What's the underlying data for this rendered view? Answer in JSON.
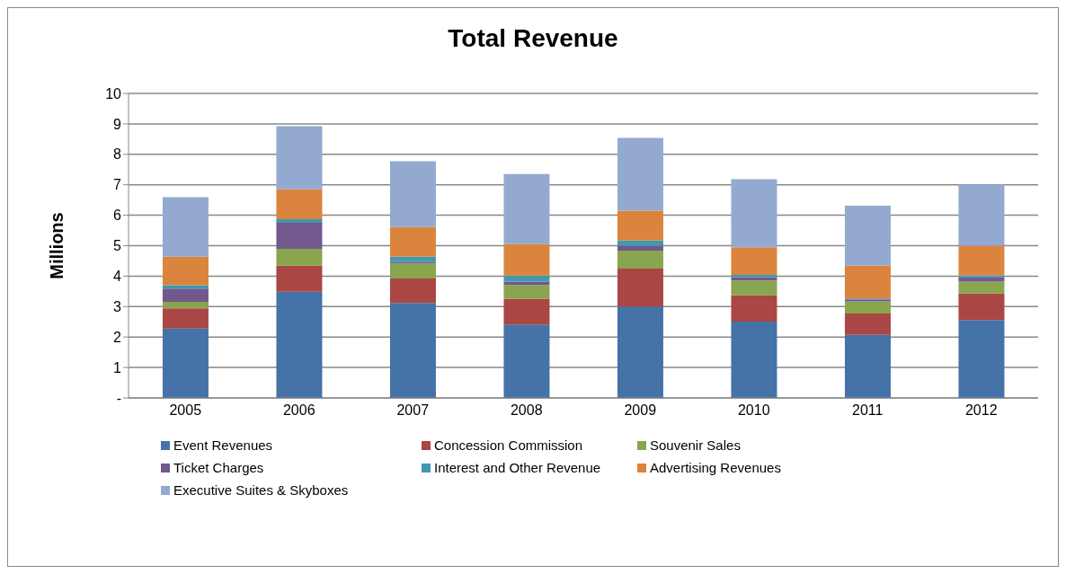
{
  "chart_data": {
    "type": "bar",
    "title": "Total Revenue",
    "ylabel": "Millions",
    "stacked": true,
    "categories": [
      "2005",
      "2006",
      "2007",
      "2008",
      "2009",
      "2010",
      "2011",
      "2012"
    ],
    "series": [
      {
        "name": "Event Revenues",
        "color": "#4572a7",
        "values": [
          2.28,
          3.49,
          3.12,
          2.41,
          3.0,
          2.51,
          2.07,
          2.56
        ]
      },
      {
        "name": "Concession Commission",
        "color": "#aa4643",
        "values": [
          0.66,
          0.85,
          0.8,
          0.85,
          1.25,
          0.86,
          0.7,
          0.87
        ]
      },
      {
        "name": "Souvenir Sales",
        "color": "#89a54e",
        "values": [
          0.22,
          0.56,
          0.5,
          0.45,
          0.59,
          0.49,
          0.4,
          0.39
        ]
      },
      {
        "name": "Ticket Charges",
        "color": "#71588f",
        "values": [
          0.43,
          0.85,
          0.05,
          0.11,
          0.16,
          0.1,
          0.07,
          0.14
        ]
      },
      {
        "name": "Interest and Other Revenue",
        "color": "#4198af",
        "values": [
          0.11,
          0.12,
          0.17,
          0.2,
          0.17,
          0.08,
          0.03,
          0.07
        ]
      },
      {
        "name": "Advertising Revenues",
        "color": "#db843d",
        "values": [
          0.94,
          0.98,
          0.97,
          1.03,
          0.98,
          0.91,
          1.07,
          0.97
        ]
      },
      {
        "name": "Executive Suites & Skyboxes",
        "color": "#93a9cf",
        "values": [
          1.95,
          2.07,
          2.16,
          2.3,
          2.39,
          2.23,
          1.97,
          2.01
        ]
      }
    ],
    "ylim": [
      0,
      10
    ],
    "yticks": [
      {
        "value": 0,
        "label": "-"
      },
      1,
      2,
      3,
      4,
      5,
      6,
      7,
      8,
      9,
      10
    ],
    "grid": "y",
    "legend": "bottom"
  }
}
